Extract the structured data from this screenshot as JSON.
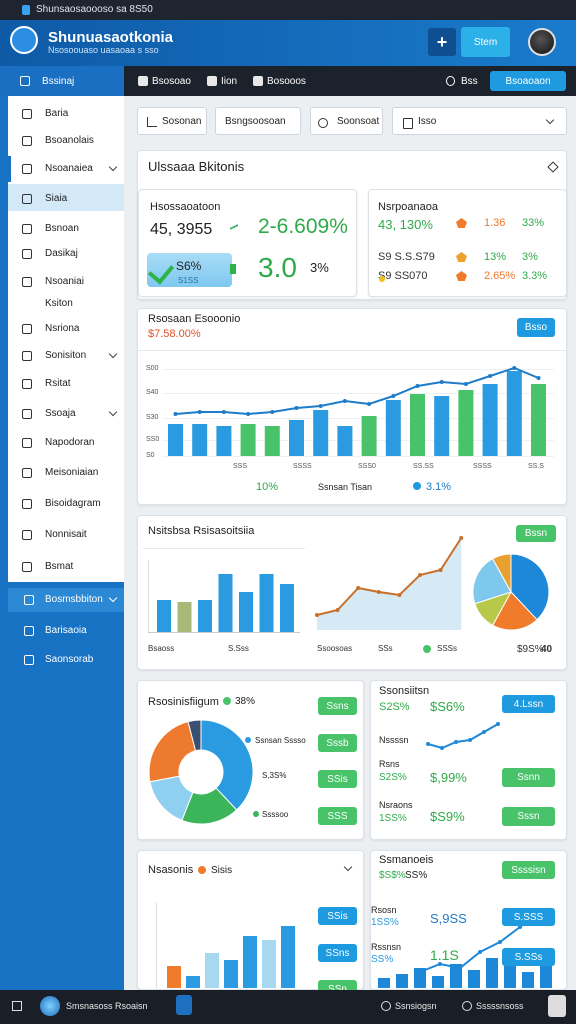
{
  "browser": {
    "tab": "Shunsaosaoooso sa 8S50"
  },
  "header": {
    "title": "Shunuasaotkonia",
    "subtitle": "Nsosoouaso uasaoaa s sso",
    "add": "+",
    "button": "Stem"
  },
  "nav": {
    "section": "Bssinaj",
    "items": [
      "Bsosoao",
      "Iion",
      "Bosooos"
    ],
    "user": "Bss",
    "button": "Bsoaoaon"
  },
  "sidebar": {
    "items": [
      "Baria",
      "Bsoanolais",
      "Nsoanaiea",
      "Siaia",
      "Bsnoan",
      "Dasikaj",
      "Nsoaniai",
      "Ksiton",
      "Nsriona",
      "Sonisiton",
      "Rsitat",
      "Ssoaja",
      "Napodoran",
      "Meisoniaian",
      "Bisoidagram",
      "Nonnisait",
      "Bsmat"
    ],
    "bottom": [
      "Bosmsbbiton",
      "Barisaoia",
      "Saonsorab"
    ]
  },
  "filters": [
    "Sosonan",
    "Bsngsoosoan",
    "Soonsoat",
    "Isso"
  ],
  "summary": {
    "title": "Ulssaaa Bkitonis",
    "left": {
      "label": "Hsossaoatoon",
      "value": "45, 3955",
      "change": "2-6.609%",
      "badge": "S6%",
      "badge_sub": "S1SS",
      "big": "3.0",
      "big_pct": "3%"
    },
    "right": {
      "label": "Nsrpoanaoa",
      "rows": [
        [
          "43, 130%",
          "1.36",
          "33%"
        ],
        [
          "S9 S.S.S79",
          "13%",
          "3%"
        ],
        [
          "S9 SS070",
          "2.65%",
          "3.3%"
        ]
      ]
    }
  },
  "trend": {
    "title": "Rsosaan Esooonio",
    "subtitle": "$7.58.00%",
    "button": "Bsso",
    "y_labels": [
      "S00",
      "S40",
      "S30",
      "SS0",
      "S0"
    ],
    "x_labels": [
      "SSS",
      "SSSS",
      "SSS0",
      "SS.SS",
      "SSSS",
      "SS.S"
    ],
    "bars": [
      32,
      32,
      30,
      32,
      30,
      36,
      46,
      30,
      40,
      56,
      62,
      60,
      66,
      72,
      85,
      72
    ],
    "bar_colors": [
      "#2a9be0",
      "#2a9be0",
      "#2a9be0",
      "#49c36a",
      "#49c36a",
      "#2a9be0",
      "#2a9be0",
      "#2a9be0",
      "#49c36a",
      "#2a9be0",
      "#49c36a",
      "#2a9be0",
      "#49c36a",
      "#2a9be0",
      "#2a9be0",
      "#49c36a"
    ],
    "line": [
      42,
      44,
      44,
      42,
      44,
      48,
      50,
      55,
      52,
      60,
      70,
      74,
      72,
      80,
      88,
      78
    ],
    "line_color": "#1e7cc8",
    "legend": [
      "10%",
      "Ssnsan Tisan",
      "3.1%"
    ]
  },
  "mixed": {
    "title": "Nsitsbsa Rsisasoitsiia",
    "button": "Bssn",
    "bars": [
      32,
      30,
      32,
      58,
      40,
      58,
      48
    ],
    "bar_colors": [
      "#2a9be0",
      "#a8b878",
      "#2a9be0",
      "#2a9be0",
      "#2a9be0",
      "#2a9be0",
      "#2a9be0"
    ],
    "line": [
      15,
      20,
      42,
      38,
      35,
      55,
      60,
      92
    ],
    "line_color": "#c8702a",
    "pie": [
      38,
      20,
      12,
      22,
      8
    ],
    "pie_colors": [
      "#1e88d8",
      "#f07b2a",
      "#b8c848",
      "#7ec8ee",
      "#e8a030"
    ],
    "labels": [
      "Bsaoss",
      "S.Sss",
      "Ssoosoas",
      "SSs",
      "SSSs",
      "$9S%",
      "40"
    ]
  },
  "donut": {
    "title": "Rsosinisfiigum",
    "pct": "38%",
    "values": [
      38,
      18,
      16,
      24,
      4
    ],
    "colors": [
      "#2a9be0",
      "#3cb55a",
      "#8fd0f0",
      "#ee7a30",
      "#3a5070"
    ],
    "legend": [
      "Ssnsan Sssso",
      "S,3S%",
      "Ssssoo"
    ],
    "buttons": [
      "Ssns",
      "Sssb",
      "SSis",
      "SSS"
    ]
  },
  "stats": {
    "title": "Ssonsiitsn",
    "r1": [
      "S2S%",
      "$S6%",
      "4.Lssn"
    ],
    "label": "Nssssn",
    "line": [
      8,
      4,
      10,
      12,
      20,
      28
    ],
    "r2": [
      "Rsns",
      "S2S%",
      "$,99%",
      "Ssnn"
    ],
    "r3": [
      "Nsraons",
      "1SS%",
      "$S9%",
      "Sssn"
    ]
  },
  "bottom_left": {
    "title": "Nsasonis",
    "tag": "Sisis",
    "bars": [
      22,
      12,
      35,
      28,
      52,
      48,
      62
    ],
    "bar_colors": [
      "#f07b2a",
      "#2a9be0",
      "#a8d8f0",
      "#2a9be0",
      "#2a9be0",
      "#a8d8f0",
      "#2a9be0"
    ],
    "buttons": [
      "SSis",
      "SSns",
      "SSn"
    ]
  },
  "bottom_right": {
    "title": "Ssmanoeis",
    "r1": [
      "$S$%",
      "SS%",
      "Ssssisn"
    ],
    "r2": [
      "Rsosn",
      "1SS%",
      "S,9SS",
      "S.SSS"
    ],
    "r3": [
      "Rssnsn",
      "SS%",
      "1.1S",
      "S.SSs"
    ],
    "line": [
      10,
      18,
      14,
      30,
      40,
      55,
      70
    ],
    "bars": [
      10,
      14,
      20,
      12,
      24,
      18,
      30,
      22,
      16,
      26
    ]
  },
  "taskbar": {
    "app": "Smsnasoss Rsoaisn",
    "items": [
      "Ssnsiogsn",
      "Sssssnsoss"
    ]
  }
}
